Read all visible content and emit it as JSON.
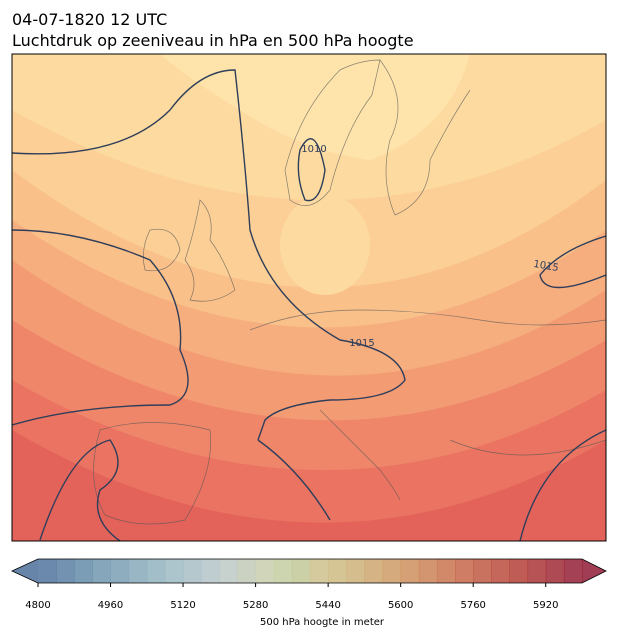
{
  "header": {
    "title": "04-07-1820 12 UTC",
    "subtitle": "Luchtdruk op zeeniveau in hPa en 500 hPa hoogte"
  },
  "contour_labels": [
    "1010",
    "1015",
    "1015"
  ],
  "colorbar": {
    "label": "500 hPa hoogte in meter",
    "lim": [
      4800,
      6000
    ],
    "ticks": [
      4800,
      4960,
      5120,
      5280,
      5440,
      5600,
      5760,
      5920
    ]
  }
}
